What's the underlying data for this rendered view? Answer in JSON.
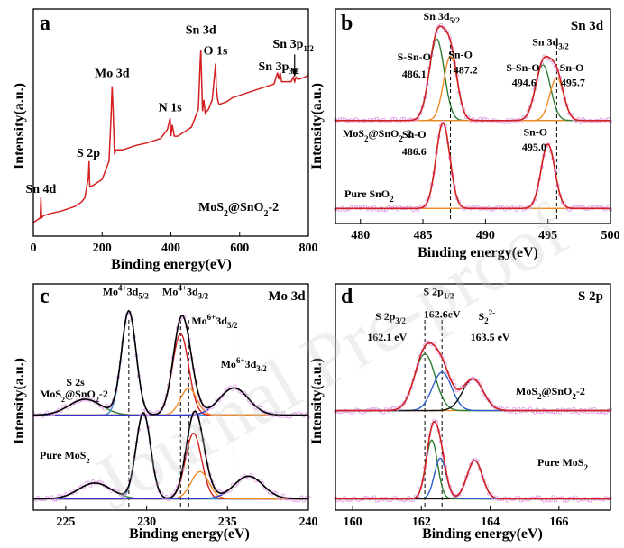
{
  "watermark": "Journal Pre-proof",
  "chart_data": [
    {
      "id": "a",
      "type": "line",
      "panel_label": "a",
      "xlabel": "Binding energy(eV)",
      "ylabel": "Intensity(a.u.)",
      "xlim": [
        0,
        800
      ],
      "xticks": [
        0,
        200,
        400,
        600,
        800
      ],
      "ylim": [
        0,
        1
      ],
      "series": [
        {
          "name": "MoS2@SnO2-2",
          "color": "#d21f1f",
          "x": [
            0,
            10,
            20,
            22,
            24,
            30,
            50,
            80,
            100,
            120,
            140,
            150,
            160,
            162,
            164,
            170,
            200,
            220,
            226,
            229,
            232,
            236,
            240,
            260,
            280,
            300,
            330,
            350,
            370,
            390,
            396,
            398,
            400,
            404,
            410,
            420,
            440,
            460,
            480,
            485,
            487,
            490,
            492,
            496,
            500,
            510,
            520,
            525,
            530,
            532,
            536,
            540,
            560,
            580,
            600,
            620,
            640,
            660,
            680,
            700,
            710,
            714,
            718,
            722,
            730,
            750,
            756,
            760,
            764,
            770,
            790,
            800
          ],
          "y": [
            0.06,
            0.07,
            0.08,
            0.17,
            0.08,
            0.09,
            0.1,
            0.11,
            0.12,
            0.13,
            0.15,
            0.17,
            0.26,
            0.33,
            0.22,
            0.22,
            0.25,
            0.33,
            0.53,
            0.66,
            0.56,
            0.36,
            0.38,
            0.38,
            0.39,
            0.4,
            0.41,
            0.42,
            0.43,
            0.47,
            0.51,
            0.52,
            0.44,
            0.49,
            0.44,
            0.44,
            0.46,
            0.48,
            0.56,
            0.76,
            0.82,
            0.66,
            0.55,
            0.6,
            0.54,
            0.56,
            0.6,
            0.68,
            0.76,
            0.66,
            0.6,
            0.58,
            0.59,
            0.61,
            0.62,
            0.63,
            0.64,
            0.65,
            0.66,
            0.67,
            0.72,
            0.69,
            0.72,
            0.68,
            0.68,
            0.68,
            0.7,
            0.68,
            0.7,
            0.69,
            0.7,
            0.71
          ]
        }
      ],
      "annotations": [
        {
          "text": "Sn 4d",
          "x": 22,
          "y": 0.19
        },
        {
          "text": "S 2p",
          "x": 160,
          "y": 0.35
        },
        {
          "text": "Mo 3d",
          "x": 229,
          "y": 0.7
        },
        {
          "text": "N 1s",
          "x": 398,
          "y": 0.55
        },
        {
          "text": "Sn 3d",
          "x": 487,
          "y": 0.89
        },
        {
          "text": "O 1s",
          "x": 530,
          "y": 0.8
        },
        {
          "text": "Sn 3p1/2",
          "x": 756,
          "y": 0.83
        },
        {
          "text": "Sn 3p3/2",
          "x": 714,
          "y": 0.73
        }
      ],
      "sample_label": "MoS2@SnO2-2"
    },
    {
      "id": "b",
      "type": "line",
      "panel_label": "b",
      "title": "Sn 3d",
      "xlabel": "Binding energy(eV)",
      "ylabel": "Intensity(a.u.)",
      "xlim": [
        478,
        500
      ],
      "xticks": [
        480,
        485,
        490,
        495,
        500
      ],
      "ylim": [
        0,
        1
      ],
      "dashed_lines_x": [
        487.2,
        495.7
      ],
      "spectra": [
        {
          "sample": "MoS2@SnO2-2",
          "baseline": 0.48,
          "peaks": [
            {
              "name": "S-Sn-O",
              "center": 486.1,
              "height": 0.38,
              "width": 0.6,
              "color": "#2e7d32"
            },
            {
              "name": "Sn-O",
              "center": 487.2,
              "height": 0.3,
              "width": 0.55,
              "color": "#f08c28"
            },
            {
              "name": "S-Sn-O",
              "center": 494.6,
              "height": 0.26,
              "width": 0.6,
              "color": "#2e7d32"
            },
            {
              "name": "Sn-O",
              "center": 495.7,
              "height": 0.2,
              "width": 0.55,
              "color": "#f08c28"
            }
          ]
        },
        {
          "sample": "Pure SnO2",
          "baseline": 0.07,
          "peaks": [
            {
              "name": "Sn-O",
              "center": 486.6,
              "height": 0.4,
              "width": 0.55,
              "color": "#f08c28"
            },
            {
              "name": "Sn-O",
              "center": 495.0,
              "height": 0.3,
              "width": 0.55,
              "color": "#f08c28"
            }
          ]
        }
      ],
      "annotations": [
        {
          "text": "Sn 3d5/2",
          "x": 486.5,
          "y": 0.95
        },
        {
          "text": "S-Sn-O",
          "x": 484.3,
          "y": 0.76
        },
        {
          "text": "486.1",
          "x": 484.3,
          "y": 0.68
        },
        {
          "text": "Sn-O",
          "x": 488.0,
          "y": 0.77
        },
        {
          "text": "487.2",
          "x": 488.4,
          "y": 0.7
        },
        {
          "text": "Sn 3d3/2",
          "x": 495.2,
          "y": 0.83
        },
        {
          "text": "S-Sn-O",
          "x": 493.0,
          "y": 0.71
        },
        {
          "text": "494.6",
          "x": 493.1,
          "y": 0.64
        },
        {
          "text": "Sn-O",
          "x": 496.9,
          "y": 0.71
        },
        {
          "text": "495.7",
          "x": 497.0,
          "y": 0.64
        },
        {
          "text": "Sn-O",
          "x": 484.3,
          "y": 0.4
        },
        {
          "text": "486.6",
          "x": 484.3,
          "y": 0.32
        },
        {
          "text": "Sn-O",
          "x": 494.0,
          "y": 0.41
        },
        {
          "text": "495.0",
          "x": 493.9,
          "y": 0.34
        }
      ],
      "sample_labels": [
        "MoS2@SnO2-2",
        "Pure SnO2"
      ]
    },
    {
      "id": "c",
      "type": "line",
      "panel_label": "c",
      "title": "Mo 3d",
      "xlabel": "Binding energy(eV)",
      "ylabel": "Intensity(a.u.)",
      "xlim": [
        223,
        240
      ],
      "xticks": [
        225,
        230,
        235,
        240
      ],
      "ylim": [
        0,
        1
      ],
      "dashed_lines_x": [
        228.9,
        232.1,
        232.6,
        235.4
      ],
      "spectra": [
        {
          "sample": "MoS2@SnO2-2",
          "baseline": 0.42,
          "peaks": [
            {
              "name": "S 2s",
              "center": 226.2,
              "height": 0.07,
              "width": 1.0,
              "color": "#2e7d32"
            },
            {
              "name": "Mo4+ 3d5/2",
              "center": 228.9,
              "height": 0.46,
              "width": 0.45,
              "color": "#3a8fd6"
            },
            {
              "name": "Mo4+ 3d3/2",
              "center": 232.1,
              "height": 0.36,
              "width": 0.5,
              "color": "#d21f1f"
            },
            {
              "name": "Mo6+ 3d5/2",
              "center": 232.6,
              "height": 0.12,
              "width": 0.5,
              "color": "#f08c28"
            },
            {
              "name": "Mo6+ 3d3/2",
              "center": 235.4,
              "height": 0.12,
              "width": 0.9,
              "color": "#3535c8"
            }
          ]
        },
        {
          "sample": "Pure MoS2",
          "baseline": 0.05,
          "peaks": [
            {
              "name": "S 2s",
              "center": 226.8,
              "height": 0.07,
              "width": 1.0,
              "color": "#2e7d32"
            },
            {
              "name": "Mo4+ 3d5/2",
              "center": 229.8,
              "height": 0.38,
              "width": 0.45,
              "color": "#3a8fd6"
            },
            {
              "name": "Mo4+ 3d3/2",
              "center": 232.9,
              "height": 0.29,
              "width": 0.5,
              "color": "#d21f1f"
            },
            {
              "name": "Mo6+ 3d5/2",
              "center": 233.3,
              "height": 0.12,
              "width": 0.55,
              "color": "#f08c28"
            },
            {
              "name": "Mo6+ 3d3/2",
              "center": 236.3,
              "height": 0.1,
              "width": 0.9,
              "color": "#3535c8"
            }
          ]
        }
      ],
      "annotations": [
        {
          "text": "Mo4+3d5/2",
          "x": 228.7,
          "y": 0.95
        },
        {
          "text": "Mo4+3d3/2",
          "x": 232.4,
          "y": 0.95
        },
        {
          "text": "Mo6+3d5/2",
          "x": 234.2,
          "y": 0.82
        },
        {
          "text": "Mo6+3d3/2",
          "x": 236.0,
          "y": 0.63
        },
        {
          "text": "S 2s",
          "x": 225.6,
          "y": 0.55
        }
      ],
      "sample_labels": [
        "MoS2@SnO2-2",
        "Pure MoS2"
      ]
    },
    {
      "id": "d",
      "type": "line",
      "panel_label": "d",
      "title": "S 2p",
      "xlabel": "Binding energy(eV)",
      "ylabel": "Intensity(a.u.)",
      "xlim": [
        159.5,
        167.5
      ],
      "xticks": [
        160,
        162,
        164,
        166
      ],
      "ylim": [
        0,
        1
      ],
      "dashed_lines_x": [
        162.1,
        162.6
      ],
      "spectra": [
        {
          "sample": "MoS2@SnO2-2",
          "baseline": 0.44,
          "peaks": [
            {
              "name": "S 2p3/2",
              "center": 162.1,
              "height": 0.25,
              "width": 0.3,
              "color": "#2e7d32"
            },
            {
              "name": "S 2p1/2",
              "center": 162.6,
              "height": 0.17,
              "width": 0.28,
              "color": "#2d5fc7"
            },
            {
              "name": "S2-",
              "center": 163.5,
              "height": 0.14,
              "width": 0.3,
              "color": "#111111"
            }
          ]
        },
        {
          "sample": "Pure MoS2",
          "baseline": 0.05,
          "peaks": [
            {
              "name": "S 2p3/2",
              "center": 162.3,
              "height": 0.26,
              "width": 0.17,
              "color": "#2e7d32"
            },
            {
              "name": "S 2p1/2",
              "center": 162.55,
              "height": 0.18,
              "width": 0.17,
              "color": "#2d5fc7"
            },
            {
              "name": "S2-",
              "center": 163.55,
              "height": 0.17,
              "width": 0.22,
              "color": "#111111"
            }
          ]
        }
      ],
      "annotations": [
        {
          "text": "S 2p1/2",
          "x": 162.5,
          "y": 0.95
        },
        {
          "text": "162.6eV",
          "x": 162.6,
          "y": 0.85
        },
        {
          "text": "S 2p3/2",
          "x": 161.1,
          "y": 0.84
        },
        {
          "text": "162.1 eV",
          "x": 161.0,
          "y": 0.75
        },
        {
          "text": "S22-",
          "x": 163.9,
          "y": 0.84
        },
        {
          "text": "163.5 eV",
          "x": 164.0,
          "y": 0.75
        }
      ],
      "sample_labels": [
        "MoS2@SnO2-2",
        "Pure MoS2"
      ]
    }
  ]
}
